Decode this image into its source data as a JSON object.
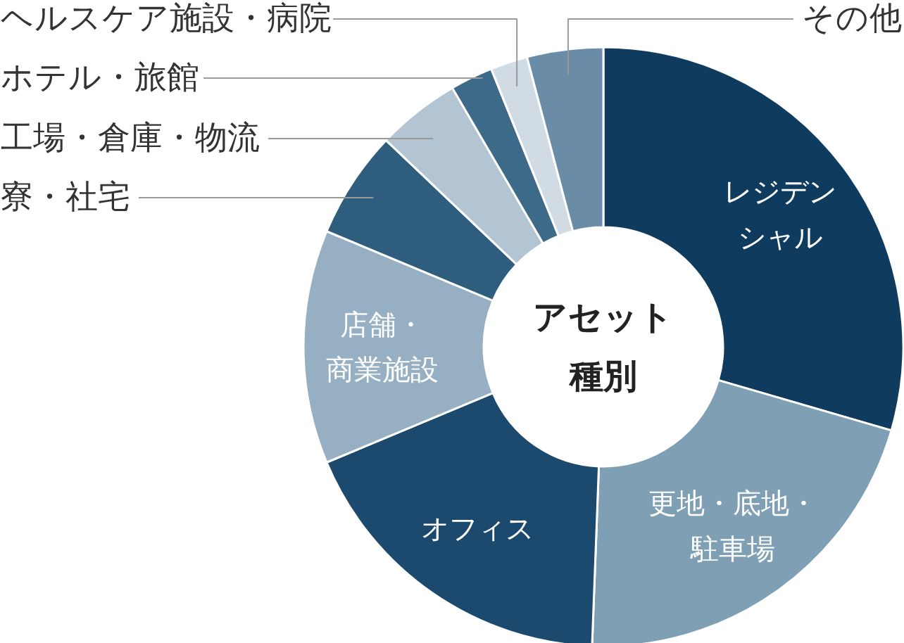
{
  "chart_data": {
    "type": "donut",
    "title": "アセット種別",
    "categories": [
      "レジデンシャル",
      "更地・底地・駐車場",
      "オフィス",
      "店舗・商業施設",
      "寮・社宅",
      "工場・倉庫・物流",
      "ホテル・旅館",
      "ヘルスケア施設・病院",
      "その他"
    ],
    "values": [
      29.5,
      21.1,
      18.1,
      12.6,
      5.8,
      4.5,
      2.3,
      2.0,
      4.1
    ],
    "colors": [
      "#0e3b5e",
      "#7f9fb5",
      "#1c4a6e",
      "#97afc2",
      "#2f5d7e",
      "#b3c5d3",
      "#3e6a8a",
      "#d0dbe4",
      "#6a8ca6"
    ]
  }
}
